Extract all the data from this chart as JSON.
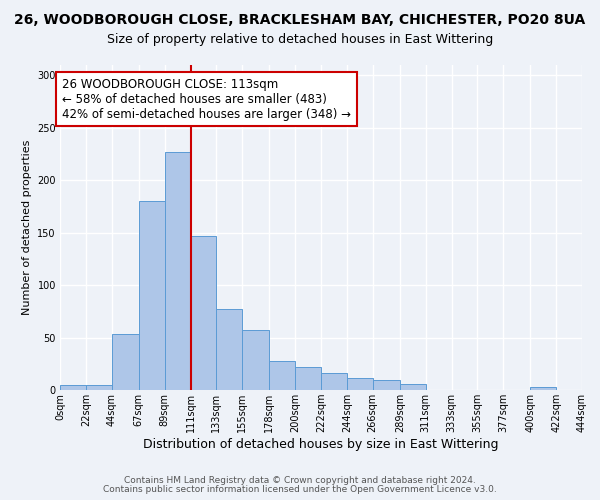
{
  "title1": "26, WOODBOROUGH CLOSE, BRACKLESHAM BAY, CHICHESTER, PO20 8UA",
  "title2": "Size of property relative to detached houses in East Wittering",
  "xlabel": "Distribution of detached houses by size in East Wittering",
  "ylabel": "Number of detached properties",
  "bin_edges": [
    0,
    22,
    44,
    67,
    89,
    111,
    133,
    155,
    178,
    200,
    222,
    244,
    266,
    289,
    311,
    333,
    355,
    377,
    400,
    422,
    444
  ],
  "bar_heights": [
    5,
    5,
    53,
    180,
    227,
    147,
    77,
    57,
    28,
    22,
    16,
    11,
    10,
    6,
    0,
    0,
    0,
    0,
    3,
    0
  ],
  "bar_color": "#aec6e8",
  "bar_edge_color": "#5b9bd5",
  "vline_x": 111,
  "vline_color": "#cc0000",
  "ylim": [
    0,
    310
  ],
  "yticks": [
    0,
    50,
    100,
    150,
    200,
    250,
    300
  ],
  "xtick_labels": [
    "0sqm",
    "22sqm",
    "44sqm",
    "67sqm",
    "89sqm",
    "111sqm",
    "133sqm",
    "155sqm",
    "178sqm",
    "200sqm",
    "222sqm",
    "244sqm",
    "266sqm",
    "289sqm",
    "311sqm",
    "333sqm",
    "355sqm",
    "377sqm",
    "400sqm",
    "422sqm",
    "444sqm"
  ],
  "annotation_text": "26 WOODBOROUGH CLOSE: 113sqm\n← 58% of detached houses are smaller (483)\n42% of semi-detached houses are larger (348) →",
  "annotation_box_color": "#ffffff",
  "annotation_box_edge_color": "#cc0000",
  "footer1": "Contains HM Land Registry data © Crown copyright and database right 2024.",
  "footer2": "Contains public sector information licensed under the Open Government Licence v3.0.",
  "background_color": "#eef2f8",
  "grid_color": "#ffffff",
  "title1_fontsize": 10,
  "title2_fontsize": 9,
  "xlabel_fontsize": 9,
  "ylabel_fontsize": 8,
  "tick_fontsize": 7,
  "annotation_fontsize": 8.5,
  "footer_fontsize": 6.5
}
